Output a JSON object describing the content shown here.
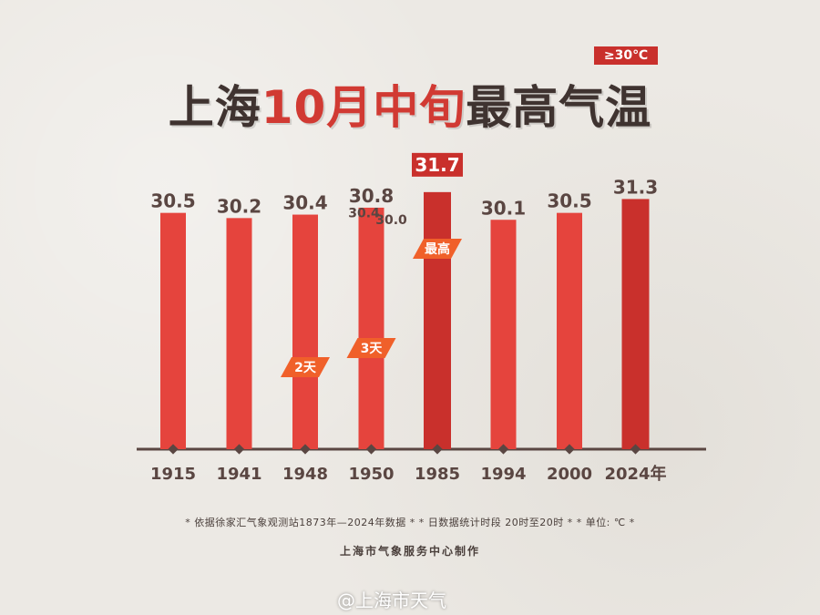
{
  "badge": "≥30℃",
  "title": {
    "part1": "上海",
    "accent": "10月中旬",
    "part2": "最高气温"
  },
  "colors": {
    "bar": "#e5443d",
    "bar_highlight": "#c9302c",
    "axis": "#5a4642",
    "text": "#5a4642",
    "tag": "#f0602a"
  },
  "chart_data": {
    "type": "bar",
    "title": "上海10月中旬最高气温",
    "categories": [
      "1915",
      "1941",
      "1948",
      "1950",
      "1985",
      "1994",
      "2000",
      "2024年"
    ],
    "series": [
      {
        "values": [
          30.5,
          30.2,
          30.4,
          30.8,
          31.7,
          30.1,
          30.5,
          31.3
        ]
      }
    ],
    "extra_bar_labels": [
      {
        "category": "1950",
        "values": [
          30.4,
          30.0
        ]
      }
    ],
    "tags": [
      {
        "category": "1948",
        "text": "2天"
      },
      {
        "category": "1950",
        "text": "3天"
      },
      {
        "category": "1985",
        "text": "最高"
      }
    ],
    "highlight": [
      "1985",
      "2024年"
    ],
    "ylim": [
      28.0,
      32.0
    ],
    "grid": false
  },
  "footnote": "* 依据徐家汇气象观测站1873年—2024年数据 * * 日数据统计时段 20时至20时 * * 单位: ℃ *",
  "credit": "上海市气象服务中心制作",
  "watermark": "@上海市天气"
}
